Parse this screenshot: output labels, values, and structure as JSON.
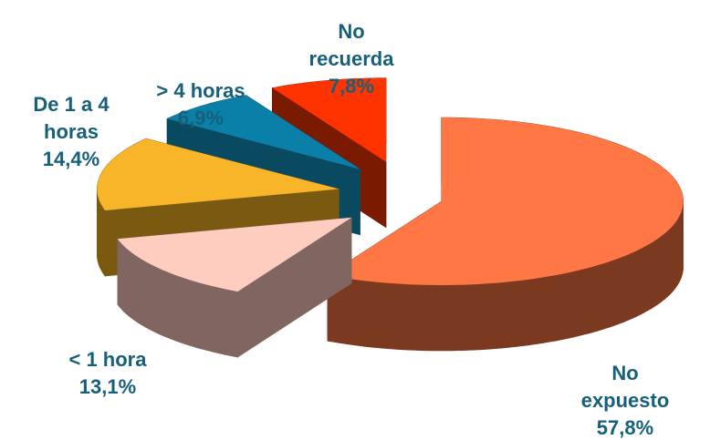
{
  "chart_data": {
    "type": "pie",
    "categories": [
      "No expuesto",
      "< 1 hora",
      "De 1 a 4 horas",
      "> 4 horas",
      "No recuerda"
    ],
    "values": [
      57.8,
      13.1,
      14.4,
      6.9,
      7.8
    ],
    "value_labels": [
      "57,8%",
      "13,1%",
      "14,4%",
      "6,9%",
      "7,8%"
    ],
    "colors": [
      "#ff7744",
      "#ffccc0",
      "#f9b52a",
      "#0a7fa8",
      "#ff3300"
    ],
    "side_colors": [
      "#7b3a20",
      "#806560",
      "#7a5a10",
      "#0a4a60",
      "#7a1a00"
    ]
  }
}
